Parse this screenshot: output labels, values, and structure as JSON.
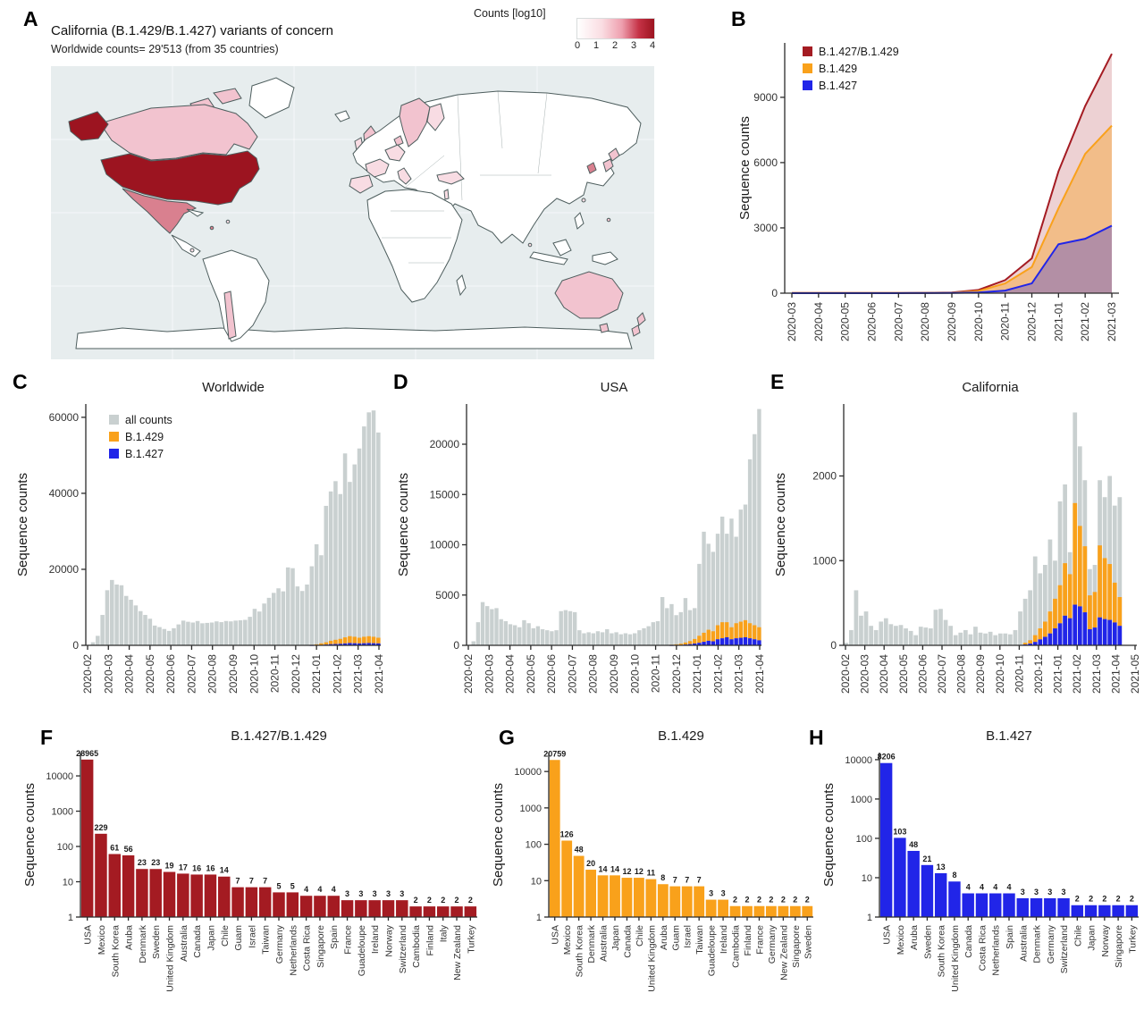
{
  "palette": {
    "dark_red": "#a41b22",
    "orange": "#f9a11b",
    "blue": "#2125e8",
    "gray_bar": "#c9d0d0",
    "map_dark": "#9c1420",
    "map_medium": "#d9808f",
    "map_light": "#f2c3cf",
    "map_very_light": "#f8dce3",
    "ocean": "#e7edee",
    "axis": "#2b2b2b"
  },
  "panel_letters": {
    "A": "A",
    "B": "B",
    "C": "C",
    "D": "D",
    "E": "E",
    "F": "F",
    "G": "G",
    "H": "H"
  },
  "panel_a": {
    "title": "California (B.1.429/B.1.427) variants of concern",
    "subtitle": "Worldwide counts=  29'513 (from 35 countries)",
    "legend_title": "Counts [log10]",
    "legend_ticks": [
      "0",
      "1",
      "2",
      "3",
      "4"
    ]
  },
  "map": {
    "colored_countries": [
      {
        "name": "USA",
        "shade": "dark"
      },
      {
        "name": "Mexico",
        "shade": "medium"
      },
      {
        "name": "South Korea",
        "shade": "medium"
      },
      {
        "name": "Canada",
        "shade": "light"
      },
      {
        "name": "United Kingdom",
        "shade": "light"
      },
      {
        "name": "Sweden",
        "shade": "light"
      },
      {
        "name": "Norway",
        "shade": "light"
      },
      {
        "name": "Denmark",
        "shade": "light"
      },
      {
        "name": "Japan",
        "shade": "light"
      },
      {
        "name": "Australia",
        "shade": "light"
      },
      {
        "name": "New Zealand",
        "shade": "light"
      },
      {
        "name": "Chile",
        "shade": "light"
      },
      {
        "name": "Ireland",
        "shade": "very_light"
      },
      {
        "name": "France",
        "shade": "very_light"
      },
      {
        "name": "Spain",
        "shade": "very_light"
      },
      {
        "name": "Germany",
        "shade": "very_light"
      },
      {
        "name": "Netherlands",
        "shade": "very_light"
      },
      {
        "name": "Finland",
        "shade": "very_light"
      },
      {
        "name": "Italy",
        "shade": "very_light"
      },
      {
        "name": "Turkey",
        "shade": "very_light"
      },
      {
        "name": "Israel",
        "shade": "very_light"
      },
      {
        "name": "Taiwan",
        "shade": "very_light"
      },
      {
        "name": "Aruba",
        "shade": "medium"
      },
      {
        "name": "Guadeloupe",
        "shade": "very_light"
      },
      {
        "name": "Costa Rica",
        "shade": "very_light"
      }
    ]
  },
  "chart_data": [
    {
      "id": "B",
      "type": "area",
      "ylabel": "Sequence counts",
      "x": [
        "2020-03",
        "2020-04",
        "2020-05",
        "2020-06",
        "2020-07",
        "2020-08",
        "2020-09",
        "2020-10",
        "2020-11",
        "2020-12",
        "2021-01",
        "2021-02",
        "2021-03"
      ],
      "yticks": [
        0,
        3000,
        6000,
        9000
      ],
      "ylim": [
        0,
        11500
      ],
      "series": [
        {
          "name": "B.1.427/B.1.429",
          "color": "#a41b22",
          "fill_opacity": 0.2,
          "values": [
            10,
            10,
            10,
            10,
            10,
            15,
            30,
            150,
            600,
            1600,
            5600,
            8600,
            11000
          ]
        },
        {
          "name": "B.1.429",
          "color": "#f9a11b",
          "fill_opacity": 0.4,
          "values": [
            5,
            5,
            5,
            5,
            5,
            10,
            20,
            100,
            450,
            1200,
            3900,
            6400,
            7700
          ]
        },
        {
          "name": "B.1.427",
          "color": "#2125e8",
          "fill_opacity": 0.3,
          "values": [
            2,
            2,
            2,
            2,
            2,
            5,
            10,
            30,
            120,
            450,
            2250,
            2500,
            3100
          ]
        }
      ]
    },
    {
      "id": "C",
      "type": "stacked-bar",
      "title": "Worldwide",
      "ylabel": "Sequence counts",
      "months": [
        "2020-02",
        "2020-03",
        "2020-04",
        "2020-05",
        "2020-06",
        "2020-07",
        "2020-08",
        "2020-09",
        "2020-10",
        "2020-11",
        "2020-12",
        "2021-01",
        "2021-02",
        "2021-03",
        "2021-04"
      ],
      "yticks": [
        0,
        20000,
        40000,
        60000
      ],
      "ylim": [
        0,
        63500
      ],
      "bar_region": 1,
      "legend": [
        {
          "label": "all counts",
          "color": "#c9d0d0"
        },
        {
          "label": "B.1.429",
          "color": "#f9a11b"
        },
        {
          "label": "B.1.427",
          "color": "#2125e8"
        }
      ],
      "series": {
        "all": [
          100,
          800,
          2500,
          8000,
          14500,
          17200,
          16000,
          15800,
          13000,
          12000,
          10500,
          9000,
          8000,
          7000,
          5200,
          4800,
          4300,
          3800,
          4500,
          5500,
          6500,
          6200,
          6000,
          6400,
          5800,
          5900,
          6000,
          6300,
          6100,
          6400,
          6300,
          6500,
          6600,
          6700,
          7500,
          9600,
          8900,
          11000,
          12500,
          13800,
          15000,
          14200,
          20500,
          20300,
          15500,
          14300,
          16000,
          20800,
          26600,
          23700,
          36700,
          40500,
          43200,
          39800,
          50500,
          43000,
          47600,
          51800,
          57600,
          61300,
          61800,
          56000
        ],
        "b429": [
          0,
          0,
          0,
          0,
          0,
          0,
          0,
          0,
          0,
          0,
          0,
          0,
          0,
          0,
          0,
          0,
          0,
          0,
          0,
          0,
          0,
          0,
          0,
          0,
          0,
          0,
          0,
          0,
          0,
          0,
          0,
          0,
          0,
          0,
          0,
          0,
          0,
          0,
          0,
          0,
          0,
          0,
          0,
          0,
          0,
          0,
          0,
          100,
          200,
          400,
          600,
          900,
          1100,
          1300,
          1600,
          1800,
          1700,
          1500,
          1700,
          1800,
          1700,
          1500
        ],
        "b427": [
          0,
          0,
          0,
          0,
          0,
          0,
          0,
          0,
          0,
          0,
          0,
          0,
          0,
          0,
          0,
          0,
          0,
          0,
          0,
          0,
          0,
          0,
          0,
          0,
          0,
          0,
          0,
          0,
          0,
          0,
          0,
          0,
          0,
          0,
          0,
          0,
          0,
          0,
          0,
          0,
          0,
          0,
          0,
          0,
          0,
          0,
          0,
          30,
          60,
          120,
          200,
          300,
          350,
          400,
          500,
          600,
          550,
          500,
          550,
          600,
          550,
          500
        ]
      }
    },
    {
      "id": "D",
      "type": "stacked-bar",
      "title": "USA",
      "ylabel": "Sequence counts",
      "months": [
        "2020-02",
        "2020-03",
        "2020-04",
        "2020-05",
        "2020-06",
        "2020-07",
        "2020-08",
        "2020-09",
        "2020-10",
        "2020-11",
        "2020-12",
        "2021-01",
        "2021-02",
        "2021-03",
        "2021-04"
      ],
      "yticks": [
        0,
        5000,
        10000,
        15000,
        20000
      ],
      "ylim": [
        0,
        24000
      ],
      "bar_region": 1,
      "series": {
        "all": [
          50,
          400,
          2300,
          4300,
          3900,
          3600,
          3700,
          2600,
          2400,
          2100,
          2000,
          1800,
          2500,
          2200,
          1700,
          1900,
          1600,
          1500,
          1400,
          1500,
          3400,
          3500,
          3400,
          3300,
          1500,
          1200,
          1300,
          1200,
          1400,
          1300,
          1600,
          1200,
          1300,
          1100,
          1200,
          1100,
          1200,
          1500,
          1700,
          1900,
          2300,
          2400,
          4800,
          3700,
          4100,
          3000,
          3300,
          4700,
          3500,
          3700,
          8100,
          11300,
          10100,
          9300,
          11100,
          12800,
          11100,
          12600,
          10800,
          13500,
          14000,
          18500,
          21000,
          23500
        ],
        "b429": [
          0,
          0,
          0,
          0,
          0,
          0,
          0,
          0,
          0,
          0,
          0,
          0,
          0,
          0,
          0,
          0,
          0,
          0,
          0,
          0,
          0,
          0,
          0,
          0,
          0,
          0,
          0,
          0,
          0,
          0,
          0,
          0,
          0,
          0,
          0,
          0,
          0,
          0,
          0,
          0,
          0,
          0,
          0,
          0,
          50,
          80,
          120,
          200,
          300,
          450,
          700,
          900,
          1100,
          1000,
          1400,
          1600,
          1500,
          1200,
          1500,
          1600,
          1700,
          1500,
          1400,
          1300
        ],
        "b427": [
          0,
          0,
          0,
          0,
          0,
          0,
          0,
          0,
          0,
          0,
          0,
          0,
          0,
          0,
          0,
          0,
          0,
          0,
          0,
          0,
          0,
          0,
          0,
          0,
          0,
          0,
          0,
          0,
          0,
          0,
          0,
          0,
          0,
          0,
          0,
          0,
          0,
          0,
          0,
          0,
          0,
          0,
          0,
          0,
          10,
          20,
          40,
          80,
          120,
          180,
          250,
          350,
          450,
          400,
          600,
          700,
          800,
          600,
          700,
          750,
          800,
          700,
          600,
          500
        ]
      }
    },
    {
      "id": "E",
      "type": "stacked-bar",
      "title": "California",
      "ylabel": "Sequence counts",
      "months": [
        "2020-02",
        "2020-03",
        "2020-04",
        "2020-05",
        "2020-06",
        "2020-07",
        "2020-08",
        "2020-09",
        "2020-10",
        "2020-11",
        "2020-12",
        "2021-01",
        "2021-02",
        "2021-03",
        "2021-04",
        "2021-05"
      ],
      "yticks": [
        0,
        1000,
        2000
      ],
      "ylim": [
        0,
        2850
      ],
      "bar_region": 0.95,
      "series": {
        "all": [
          30,
          180,
          650,
          350,
          400,
          230,
          180,
          280,
          320,
          250,
          230,
          240,
          200,
          170,
          120,
          220,
          210,
          200,
          420,
          430,
          300,
          230,
          120,
          150,
          180,
          130,
          220,
          150,
          140,
          160,
          120,
          140,
          140,
          130,
          180,
          400,
          550,
          650,
          1050,
          850,
          950,
          1250,
          1000,
          1700,
          1900,
          1100,
          2750,
          2350,
          1950,
          900,
          950,
          1950,
          1750,
          2000,
          1650,
          1750
        ],
        "b429": [
          0,
          0,
          0,
          0,
          0,
          0,
          0,
          0,
          0,
          0,
          0,
          0,
          0,
          0,
          0,
          0,
          0,
          0,
          0,
          0,
          0,
          0,
          0,
          0,
          0,
          0,
          0,
          0,
          0,
          0,
          0,
          0,
          0,
          0,
          0,
          0,
          20,
          40,
          80,
          130,
          180,
          260,
          350,
          450,
          620,
          520,
          1200,
          950,
          780,
          400,
          420,
          850,
          720,
          660,
          470,
          340
        ],
        "b427": [
          0,
          0,
          0,
          0,
          0,
          0,
          0,
          0,
          0,
          0,
          0,
          0,
          0,
          0,
          0,
          0,
          0,
          0,
          0,
          0,
          0,
          0,
          0,
          0,
          0,
          0,
          0,
          0,
          0,
          0,
          0,
          0,
          0,
          0,
          0,
          0,
          10,
          20,
          40,
          70,
          100,
          140,
          200,
          260,
          350,
          320,
          480,
          460,
          390,
          190,
          210,
          330,
          310,
          300,
          270,
          230
        ]
      }
    },
    {
      "id": "F",
      "type": "log-bar",
      "title": "B.1.427/B.1.429",
      "ylabel": "Sequence counts",
      "color": "#a41b22",
      "yticks": [
        1,
        10,
        100,
        1000,
        10000
      ],
      "maxlog": 4.66,
      "categories": [
        "USA",
        "Mexico",
        "South Korea",
        "Aruba",
        "Denmark",
        "Sweden",
        "United Kingdom",
        "Australia",
        "Canada",
        "Japan",
        "Chile",
        "Guam",
        "Israel",
        "Taiwan",
        "Germany",
        "Netherlands",
        "Costa Rica",
        "Singapore",
        "Spain",
        "France",
        "Guadeloupe",
        "Ireland",
        "Norway",
        "Switzerland",
        "Cambodia",
        "Finland",
        "Italy",
        "New Zealand",
        "Turkey"
      ],
      "values": [
        28965,
        229,
        61,
        56,
        23,
        23,
        19,
        17,
        16,
        16,
        14,
        7,
        7,
        7,
        5,
        5,
        4,
        4,
        4,
        3,
        3,
        3,
        3,
        3,
        2,
        2,
        2,
        2,
        2
      ]
    },
    {
      "id": "G",
      "type": "log-bar",
      "title": "B.1.429",
      "ylabel": "Sequence counts",
      "color": "#f9a11b",
      "yticks": [
        1,
        10,
        100,
        1000,
        10000
      ],
      "maxlog": 4.52,
      "categories": [
        "USA",
        "Mexico",
        "South Korea",
        "Denmark",
        "Australia",
        "Japan",
        "Canada",
        "Chile",
        "United Kingdom",
        "Aruba",
        "Guam",
        "Israel",
        "Taiwan",
        "Guadeloupe",
        "Ireland",
        "Cambodia",
        "Finland",
        "France",
        "Germany",
        "New Zealand",
        "Singapore",
        "Sweden"
      ],
      "values": [
        20759,
        126,
        48,
        20,
        14,
        14,
        12,
        12,
        11,
        8,
        7,
        7,
        7,
        3,
        3,
        2,
        2,
        2,
        2,
        2,
        2,
        2
      ]
    },
    {
      "id": "H",
      "type": "log-bar",
      "title": "B.1.427",
      "ylabel": "Sequence counts",
      "color": "#2125e8",
      "yticks": [
        1,
        10,
        100,
        1000,
        10000
      ],
      "maxlog": 4.18,
      "categories": [
        "USA",
        "Mexico",
        "Aruba",
        "Sweden",
        "South Korea",
        "United Kingdom",
        "Canada",
        "Costa Rica",
        "Netherlands",
        "Spain",
        "Australia",
        "Denmark",
        "Germany",
        "Switzerland",
        "Chile",
        "Japan",
        "Norway",
        "Singapore",
        "Turkey"
      ],
      "values": [
        8206,
        103,
        48,
        21,
        13,
        8,
        4,
        4,
        4,
        4,
        3,
        3,
        3,
        3,
        2,
        2,
        2,
        2,
        2
      ]
    }
  ]
}
